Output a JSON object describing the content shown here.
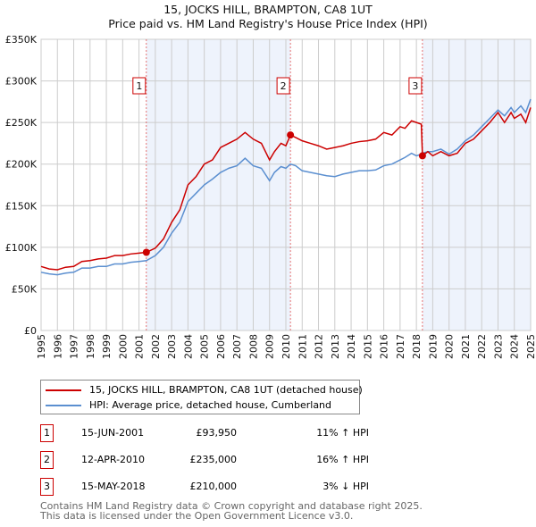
{
  "title": "15, JOCKS HILL, BRAMPTON, CA8 1UT",
  "subtitle": "Price paid vs. HM Land Registry's House Price Index (HPI)",
  "chart_data": {
    "type": "line",
    "title": "15, JOCKS HILL, BRAMPTON, CA8 1UT",
    "subtitle": "Price paid vs. HM Land Registry's House Price Index (HPI)",
    "xlim": [
      1995,
      2025
    ],
    "ylim": [
      0,
      350000
    ],
    "x_ticks": [
      "1995",
      "1996",
      "1997",
      "1998",
      "1999",
      "2000",
      "2001",
      "2002",
      "2003",
      "2004",
      "2005",
      "2006",
      "2007",
      "2008",
      "2009",
      "2010",
      "2011",
      "2012",
      "2013",
      "2014",
      "2015",
      "2016",
      "2017",
      "2018",
      "2019",
      "2020",
      "2021",
      "2022",
      "2023",
      "2024",
      "2025"
    ],
    "y_ticks": [
      {
        "v": 0,
        "l": "£0"
      },
      {
        "v": 50000,
        "l": "£50K"
      },
      {
        "v": 100000,
        "l": "£100K"
      },
      {
        "v": 150000,
        "l": "£150K"
      },
      {
        "v": 200000,
        "l": "£200K"
      },
      {
        "v": 250000,
        "l": "£250K"
      },
      {
        "v": 300000,
        "l": "£300K"
      },
      {
        "v": 350000,
        "l": "£350K"
      }
    ],
    "grid": true,
    "colors": {
      "property": "#cc0000",
      "hpi": "#5b8fd0",
      "shade": "#eef3fc"
    },
    "series": [
      {
        "name": "15, JOCKS HILL, BRAMPTON, CA8 1UT (detached house)",
        "color": "#cc0000",
        "x": [
          1995,
          1995.5,
          1996,
          1996.5,
          1997,
          1997.5,
          1998,
          1998.5,
          1999,
          1999.5,
          2000,
          2000.5,
          2001,
          2001.45,
          2002,
          2002.5,
          2003,
          2003.5,
          2004,
          2004.5,
          2005,
          2005.5,
          2006,
          2006.5,
          2007,
          2007.5,
          2008,
          2008.5,
          2009,
          2009.3,
          2009.7,
          2010,
          2010.28,
          2010.6,
          2011,
          2011.5,
          2012,
          2012.5,
          2013,
          2013.5,
          2014,
          2014.5,
          2015,
          2015.5,
          2016,
          2016.5,
          2017,
          2017.3,
          2017.7,
          2018,
          2018.3,
          2018.37,
          2018.7,
          2019,
          2019.5,
          2020,
          2020.5,
          2021,
          2021.5,
          2022,
          2022.5,
          2023,
          2023.4,
          2023.8,
          2024,
          2024.4,
          2024.7,
          2025
        ],
        "y": [
          77000,
          74000,
          73000,
          76000,
          77000,
          83000,
          84000,
          86000,
          87000,
          90000,
          90000,
          92000,
          93000,
          93950,
          99000,
          110000,
          130000,
          145000,
          175000,
          185000,
          200000,
          205000,
          220000,
          225000,
          230000,
          238000,
          230000,
          225000,
          205000,
          215000,
          225000,
          222000,
          235000,
          232000,
          228000,
          225000,
          222000,
          218000,
          220000,
          222000,
          225000,
          227000,
          228000,
          230000,
          238000,
          235000,
          245000,
          243000,
          252000,
          250000,
          248000,
          210000,
          215000,
          210000,
          215000,
          210000,
          213000,
          225000,
          230000,
          240000,
          250000,
          262000,
          250000,
          262000,
          255000,
          260000,
          250000,
          268000
        ]
      },
      {
        "name": "HPI: Average price, detached house, Cumberland",
        "color": "#5b8fd0",
        "x": [
          1995,
          1995.5,
          1996,
          1996.5,
          1997,
          1997.5,
          1998,
          1998.5,
          1999,
          1999.5,
          2000,
          2000.5,
          2001,
          2001.45,
          2002,
          2002.5,
          2003,
          2003.5,
          2004,
          2004.5,
          2005,
          2005.5,
          2006,
          2006.5,
          2007,
          2007.5,
          2008,
          2008.5,
          2009,
          2009.3,
          2009.7,
          2010,
          2010.28,
          2010.6,
          2011,
          2011.5,
          2012,
          2012.5,
          2013,
          2013.5,
          2014,
          2014.5,
          2015,
          2015.5,
          2016,
          2016.5,
          2017,
          2017.3,
          2017.7,
          2018,
          2018.3,
          2018.37,
          2018.7,
          2019,
          2019.5,
          2020,
          2020.5,
          2021,
          2021.5,
          2022,
          2022.5,
          2023,
          2023.4,
          2023.8,
          2024,
          2024.4,
          2024.7,
          2025
        ],
        "y": [
          70000,
          68000,
          67000,
          69000,
          70000,
          75000,
          75000,
          77000,
          77000,
          80000,
          80000,
          82000,
          83000,
          84000,
          90000,
          100000,
          117000,
          130000,
          155000,
          165000,
          175000,
          182000,
          190000,
          195000,
          198000,
          207000,
          198000,
          195000,
          180000,
          190000,
          197000,
          195000,
          200000,
          198000,
          192000,
          190000,
          188000,
          186000,
          185000,
          188000,
          190000,
          192000,
          192000,
          193000,
          198000,
          200000,
          205000,
          208000,
          213000,
          210000,
          212000,
          213000,
          215000,
          215000,
          218000,
          212000,
          218000,
          228000,
          235000,
          245000,
          255000,
          265000,
          258000,
          268000,
          262000,
          270000,
          262000,
          278000
        ]
      }
    ],
    "sales": [
      {
        "n": "1",
        "x": 2001.45,
        "y": 93950
      },
      {
        "n": "2",
        "x": 2010.28,
        "y": 235000
      },
      {
        "n": "3",
        "x": 2018.37,
        "y": 210000
      }
    ],
    "shaded": [
      [
        2001.45,
        2010.28
      ],
      [
        2018.37,
        2025
      ]
    ],
    "legend": "below"
  },
  "legend": {
    "property": "15, JOCKS HILL, BRAMPTON, CA8 1UT (detached house)",
    "hpi": "HPI: Average price, detached house, Cumberland"
  },
  "transactions": [
    {
      "n": "1",
      "date": "15-JUN-2001",
      "price": "£93,950",
      "hpi": "11% ↑ HPI"
    },
    {
      "n": "2",
      "date": "12-APR-2010",
      "price": "£235,000",
      "hpi": "16% ↑ HPI"
    },
    {
      "n": "3",
      "date": "15-MAY-2018",
      "price": "£210,000",
      "hpi": "3% ↓ HPI"
    }
  ],
  "footer": {
    "line1": "Contains HM Land Registry data © Crown copyright and database right 2025.",
    "line2": "This data is licensed under the Open Government Licence v3.0."
  }
}
